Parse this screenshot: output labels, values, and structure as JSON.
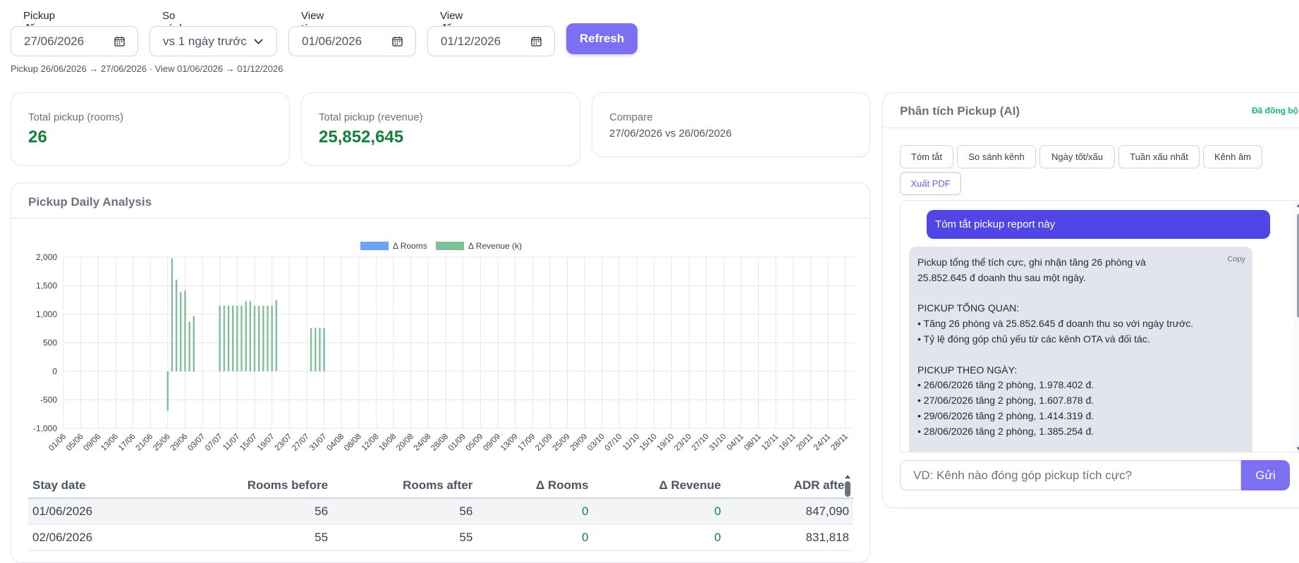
{
  "filters": {
    "pickup_to": {
      "label": "Pickup đến (snapshot)",
      "value": "27/06/2026"
    },
    "compare": {
      "label": "So sánh",
      "value": "vs 1 ngày trước"
    },
    "view_from": {
      "label": "View từ",
      "value": "01/06/2026"
    },
    "view_to": {
      "label": "View đến",
      "value": "01/12/2026"
    },
    "refresh_label": "Refresh",
    "hint": "Pickup 26/06/2026 → 27/06/2026 · View 01/06/2026 → 01/12/2026"
  },
  "stats": [
    {
      "label": "Total pickup (rooms)",
      "value": "26"
    },
    {
      "label": "Total pickup (revenue)",
      "value": "25,852,645"
    },
    {
      "label": "Compare",
      "value": "27/06/2026 vs 26/06/2026"
    }
  ],
  "chart_card": {
    "title": "Pickup Daily Analysis"
  },
  "chart_data": {
    "type": "bar",
    "title": "",
    "xlabel": "",
    "ylabel": "",
    "ylim": [
      -1000,
      2000
    ],
    "y_ticks": [
      "2,000",
      "1,500",
      "1,000",
      "500",
      "0",
      "-500",
      "-1,000"
    ],
    "x_tick_labels": [
      "01/06",
      "05/06",
      "09/06",
      "13/06",
      "17/06",
      "21/06",
      "25/06",
      "29/06",
      "03/07",
      "07/07",
      "11/07",
      "15/07",
      "19/07",
      "23/07",
      "27/07",
      "31/07",
      "04/08",
      "08/08",
      "12/08",
      "16/08",
      "20/08",
      "24/08",
      "28/08",
      "01/09",
      "05/09",
      "09/09",
      "13/09",
      "17/09",
      "21/09",
      "25/09",
      "29/09",
      "03/10",
      "07/10",
      "11/10",
      "15/10",
      "19/10",
      "23/10",
      "27/10",
      "31/10",
      "04/11",
      "08/11",
      "12/11",
      "16/11",
      "20/11",
      "24/11",
      "28/11"
    ],
    "legend": [
      "Δ Rooms",
      "Δ Revenue (k)"
    ],
    "legend_position": "top",
    "grid": true,
    "colors": {
      "rooms": "#6aa5f5",
      "revenue": "#7fbf9a"
    },
    "series": [
      {
        "name": "Δ Revenue (k)",
        "points": [
          {
            "x": "25/06",
            "y": -690
          },
          {
            "x": "26/06",
            "y": 1978
          },
          {
            "x": "27/06",
            "y": 1608
          },
          {
            "x": "28/06",
            "y": 1385
          },
          {
            "x": "29/06",
            "y": 1414
          },
          {
            "x": "30/06",
            "y": 870
          },
          {
            "x": "01/07",
            "y": 970
          },
          {
            "x": "07/07",
            "y": 1150
          },
          {
            "x": "08/07",
            "y": 1150
          },
          {
            "x": "09/07",
            "y": 1150
          },
          {
            "x": "10/07",
            "y": 1150
          },
          {
            "x": "11/07",
            "y": 1150
          },
          {
            "x": "12/07",
            "y": 1150
          },
          {
            "x": "13/07",
            "y": 1230
          },
          {
            "x": "14/07",
            "y": 1230
          },
          {
            "x": "15/07",
            "y": 1150
          },
          {
            "x": "16/07",
            "y": 1150
          },
          {
            "x": "17/07",
            "y": 1150
          },
          {
            "x": "18/07",
            "y": 1150
          },
          {
            "x": "19/07",
            "y": 1150
          },
          {
            "x": "20/07",
            "y": 1250
          },
          {
            "x": "28/07",
            "y": 760
          },
          {
            "x": "29/07",
            "y": 760
          },
          {
            "x": "30/07",
            "y": 760
          },
          {
            "x": "31/07",
            "y": 760
          }
        ]
      }
    ]
  },
  "table": {
    "headers": [
      "Stay date",
      "Rooms before",
      "Rooms after",
      "Δ Rooms",
      "Δ Revenue",
      "ADR after"
    ],
    "rows": [
      [
        "01/06/2026",
        "56",
        "56",
        "0",
        "0",
        "847,090"
      ],
      [
        "02/06/2026",
        "55",
        "55",
        "0",
        "0",
        "831,818"
      ]
    ]
  },
  "ai": {
    "title": "Phân tích Pickup (AI)",
    "sync_status": "Đã đồng bộ",
    "chips": [
      "Tóm tắt",
      "So sánh kênh",
      "Ngày tốt/xấu",
      "Tuần xấu nhất",
      "Kênh âm",
      "Xuất PDF"
    ],
    "user_message": "Tóm tắt pickup report này",
    "copy_label": "Copy",
    "assistant_lines": [
      "Pickup tổng thể tích cực, ghi nhận tăng 26 phòng và",
      "25.852.645 đ doanh thu sau một ngày.",
      "",
      "PICKUP TỔNG QUAN:",
      "• Tăng 26 phòng và 25.852.645 đ doanh thu so với ngày trước.",
      "• Tỷ lệ đóng góp chủ yếu từ các kênh OTA và đối tác.",
      "",
      "PICKUP THEO NGÀY:",
      "• 26/06/2026 tăng 2 phòng, 1.978.402 đ.",
      "• 27/06/2026 tăng 2 phòng, 1.607.878 đ.",
      "• 29/06/2026 tăng 2 phòng, 1.414.319 đ.",
      "• 28/06/2026 tăng 2 phòng, 1.385.254 đ."
    ],
    "input_placeholder": "VD: Kênh nào đóng góp pickup tích cực?",
    "send_label": "Gửi"
  }
}
